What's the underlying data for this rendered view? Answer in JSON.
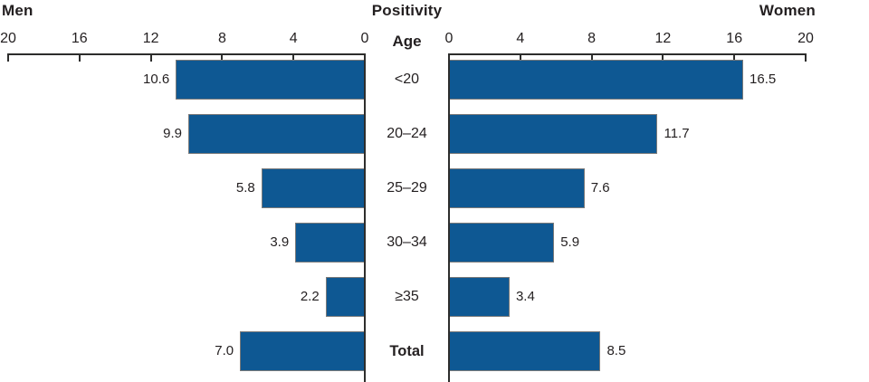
{
  "header": {
    "left": "Men",
    "center": "Positivity",
    "right": "Women"
  },
  "age_axis_title": "Age",
  "rows": [
    {
      "age": "<20",
      "men_label": "10.6",
      "women_label": "16.5"
    },
    {
      "age": "20–24",
      "men_label": "9.9",
      "women_label": "11.7"
    },
    {
      "age": "25–29",
      "men_label": "5.8",
      "women_label": "7.6"
    },
    {
      "age": "30–34",
      "men_label": "3.9",
      "women_label": "5.9"
    },
    {
      "age": "≥35",
      "men_label": "2.2",
      "women_label": "3.4"
    },
    {
      "age": "Total",
      "men_label": "7.0",
      "women_label": "8.5"
    }
  ],
  "chart_data": {
    "type": "bar",
    "subtype": "population-pyramid",
    "title": "Positivity",
    "category_axis_label": "Age",
    "categories": [
      "<20",
      "20–24",
      "25–29",
      "30–34",
      "≥35",
      "Total"
    ],
    "series": [
      {
        "name": "Men",
        "side": "left",
        "values": [
          10.6,
          9.9,
          5.8,
          3.9,
          2.2,
          7.0
        ]
      },
      {
        "name": "Women",
        "side": "right",
        "values": [
          16.5,
          11.7,
          7.6,
          5.9,
          3.4,
          8.5
        ]
      }
    ],
    "value_axis": {
      "min": 0,
      "max": 20,
      "left_ticks": [
        20,
        16,
        12,
        8,
        4,
        0
      ],
      "right_ticks": [
        0,
        4,
        8,
        12,
        16,
        20
      ]
    },
    "grid": false,
    "legend": "none",
    "bar_color": "#0E5893",
    "bar_border_color": "#7A7A7A",
    "axis_color": "#2D2D2C",
    "text_color": "#231F20"
  }
}
